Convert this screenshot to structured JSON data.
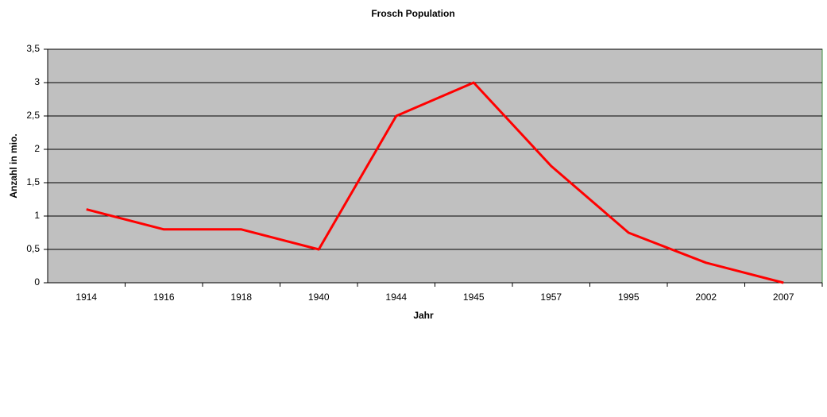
{
  "chart_data": {
    "type": "line",
    "title": "Frosch Population",
    "x_label": "Jahr",
    "y_label": "Anzahl in mio.",
    "categories": [
      "1914",
      "1916",
      "1918",
      "1940",
      "1944",
      "1945",
      "1957",
      "1995",
      "2002",
      "2007"
    ],
    "series": [
      {
        "name": "Frosch Population",
        "color": "#ff0000",
        "values": [
          1.1,
          0.8,
          0.8,
          0.5,
          2.5,
          3.0,
          1.75,
          0.75,
          0.3,
          0
        ]
      }
    ],
    "ylim": [
      0,
      3.5
    ],
    "yticks": [
      0,
      {
        "value": 0.5,
        "label": "0,5"
      },
      1,
      {
        "value": 1.5,
        "label": "1,5"
      },
      2,
      {
        "value": 2.5,
        "label": "2,5"
      },
      3,
      {
        "value": 3.5,
        "label": "3,5"
      }
    ],
    "grid": true
  }
}
